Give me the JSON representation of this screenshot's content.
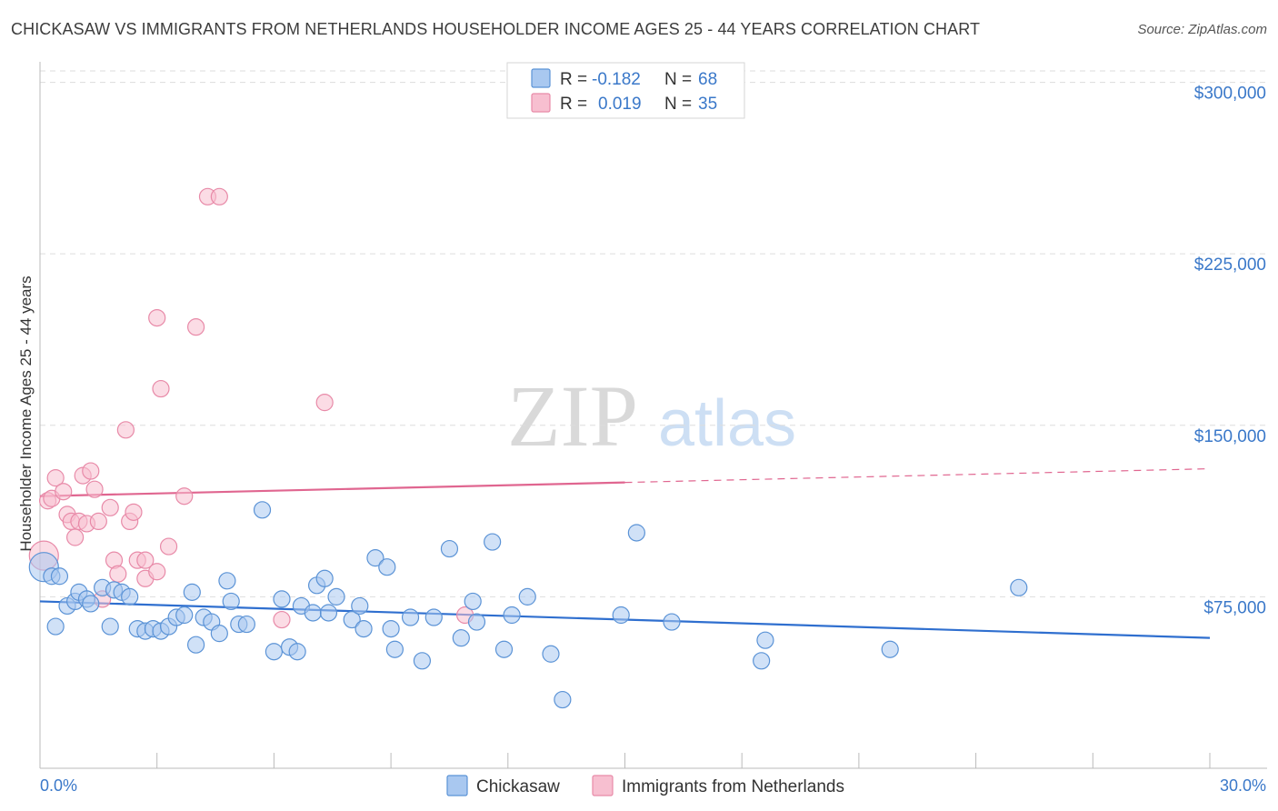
{
  "title": "CHICKASAW VS IMMIGRANTS FROM NETHERLANDS HOUSEHOLDER INCOME AGES 25 - 44 YEARS CORRELATION CHART",
  "source": "Source: ZipAtlas.com",
  "watermark": {
    "zip": "ZIP",
    "atlas": "atlas"
  },
  "legend_top": [
    {
      "r_label": "R =",
      "r_value": "-0.182",
      "n_label": "N =",
      "n_value": "68"
    },
    {
      "r_label": "R =",
      "r_value": "0.019",
      "n_label": "N =",
      "n_value": "35"
    }
  ],
  "colors": {
    "blue_fill": "#a9c8f0",
    "blue_stroke": "#5b93d6",
    "blue_line": "#2f6fcf",
    "pink_fill": "#f7bfd0",
    "pink_stroke": "#e88aa8",
    "pink_line": "#e06690",
    "axis_text": "#3a78c9",
    "grid": "#dddddd"
  },
  "chart_data": {
    "type": "scatter",
    "xlabel": "",
    "ylabel": "Householder Income Ages 25 - 44 years",
    "xlim": [
      0,
      30
    ],
    "ylim": [
      0,
      305000
    ],
    "x_tick_labels": [
      "0.0%",
      "30.0%"
    ],
    "y_ticks": [
      75000,
      150000,
      225000,
      300000
    ],
    "y_tick_labels": [
      "$75,000",
      "$150,000",
      "$225,000",
      "$300,000"
    ],
    "grid": "horizontal dashed",
    "legend": "top-center and bottom-center",
    "series": [
      {
        "name": "Chickasaw",
        "r": -0.182,
        "n": 68,
        "trend": {
          "x": [
            0,
            30
          ],
          "y": [
            73000,
            57000
          ]
        },
        "points": [
          [
            0.1,
            88000
          ],
          [
            0.3,
            84000
          ],
          [
            0.5,
            84000
          ],
          [
            0.7,
            71000
          ],
          [
            0.9,
            73000
          ],
          [
            1.0,
            77000
          ],
          [
            1.2,
            74000
          ],
          [
            1.3,
            72000
          ],
          [
            1.6,
            79000
          ],
          [
            1.8,
            62000
          ],
          [
            1.9,
            78000
          ],
          [
            2.1,
            77000
          ],
          [
            2.3,
            75000
          ],
          [
            2.5,
            61000
          ],
          [
            2.7,
            60000
          ],
          [
            2.9,
            61000
          ],
          [
            3.1,
            60000
          ],
          [
            3.3,
            62000
          ],
          [
            3.5,
            66000
          ],
          [
            3.7,
            67000
          ],
          [
            3.9,
            77000
          ],
          [
            4.0,
            54000
          ],
          [
            4.2,
            66000
          ],
          [
            4.4,
            64000
          ],
          [
            4.6,
            59000
          ],
          [
            4.8,
            82000
          ],
          [
            4.9,
            73000
          ],
          [
            5.1,
            63000
          ],
          [
            5.3,
            63000
          ],
          [
            5.7,
            113000
          ],
          [
            6.0,
            51000
          ],
          [
            6.2,
            74000
          ],
          [
            6.4,
            53000
          ],
          [
            6.6,
            51000
          ],
          [
            6.7,
            71000
          ],
          [
            7.0,
            68000
          ],
          [
            7.1,
            80000
          ],
          [
            7.3,
            83000
          ],
          [
            7.4,
            68000
          ],
          [
            7.6,
            75000
          ],
          [
            8.0,
            65000
          ],
          [
            8.2,
            71000
          ],
          [
            8.3,
            61000
          ],
          [
            8.6,
            92000
          ],
          [
            8.9,
            88000
          ],
          [
            9.1,
            52000
          ],
          [
            9.0,
            61000
          ],
          [
            9.5,
            66000
          ],
          [
            9.8,
            47000
          ],
          [
            10.1,
            66000
          ],
          [
            10.5,
            96000
          ],
          [
            10.8,
            57000
          ],
          [
            11.1,
            73000
          ],
          [
            11.2,
            64000
          ],
          [
            11.6,
            99000
          ],
          [
            11.9,
            52000
          ],
          [
            12.1,
            67000
          ],
          [
            12.5,
            75000
          ],
          [
            13.1,
            50000
          ],
          [
            13.4,
            30000
          ],
          [
            14.9,
            67000
          ],
          [
            15.3,
            103000
          ],
          [
            16.2,
            64000
          ],
          [
            18.5,
            47000
          ],
          [
            18.6,
            56000
          ],
          [
            21.8,
            52000
          ],
          [
            25.1,
            79000
          ],
          [
            0.4,
            62000
          ]
        ]
      },
      {
        "name": "Immigrants from Netherlands",
        "r": 0.019,
        "n": 35,
        "trend": {
          "x": [
            15,
            30
          ],
          "y": [
            125000,
            131000
          ],
          "solid_x": [
            0,
            15
          ],
          "solid_y": [
            119000,
            125000
          ]
        },
        "points": [
          [
            0.1,
            93000
          ],
          [
            0.2,
            117000
          ],
          [
            0.3,
            118000
          ],
          [
            0.4,
            127000
          ],
          [
            0.6,
            121000
          ],
          [
            0.7,
            111000
          ],
          [
            0.8,
            108000
          ],
          [
            0.9,
            101000
          ],
          [
            1.0,
            108000
          ],
          [
            1.1,
            128000
          ],
          [
            1.2,
            107000
          ],
          [
            1.3,
            130000
          ],
          [
            1.4,
            122000
          ],
          [
            1.5,
            108000
          ],
          [
            1.6,
            74000
          ],
          [
            1.8,
            114000
          ],
          [
            1.9,
            91000
          ],
          [
            2.0,
            85000
          ],
          [
            2.2,
            148000
          ],
          [
            2.3,
            108000
          ],
          [
            2.4,
            112000
          ],
          [
            2.5,
            91000
          ],
          [
            2.7,
            91000
          ],
          [
            2.7,
            83000
          ],
          [
            3.0,
            86000
          ],
          [
            3.0,
            197000
          ],
          [
            3.1,
            166000
          ],
          [
            3.3,
            97000
          ],
          [
            3.7,
            119000
          ],
          [
            4.0,
            193000
          ],
          [
            4.3,
            250000
          ],
          [
            4.6,
            250000
          ],
          [
            6.2,
            65000
          ],
          [
            7.3,
            160000
          ],
          [
            10.9,
            67000
          ]
        ]
      }
    ]
  },
  "legend_bottom": [
    "Chickasaw",
    "Immigrants from Netherlands"
  ]
}
